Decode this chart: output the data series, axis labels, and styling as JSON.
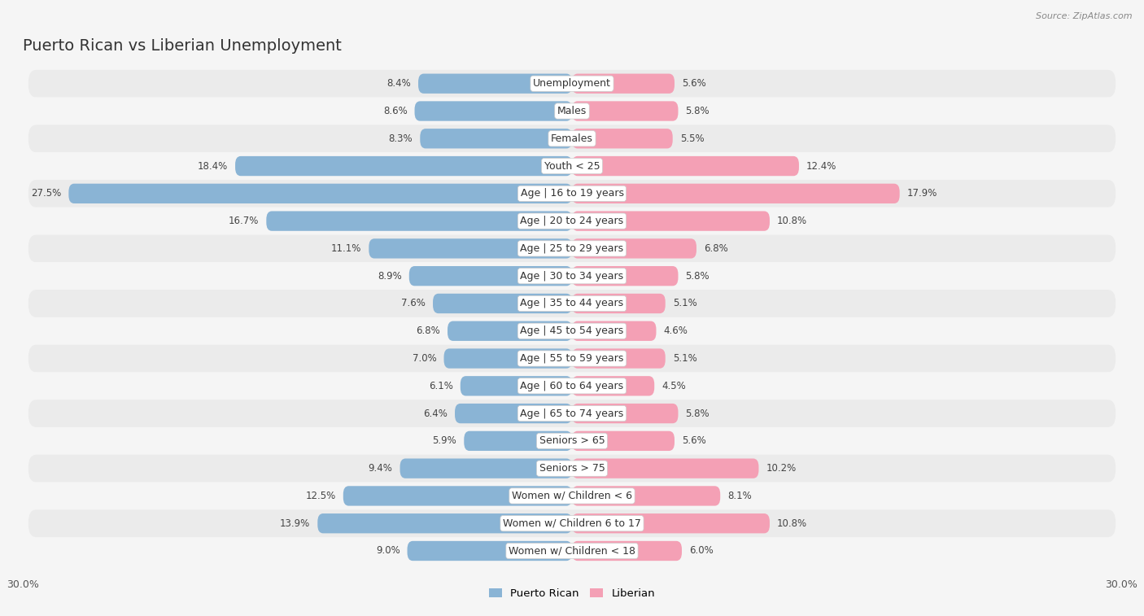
{
  "title": "Puerto Rican vs Liberian Unemployment",
  "source": "Source: ZipAtlas.com",
  "categories": [
    "Unemployment",
    "Males",
    "Females",
    "Youth < 25",
    "Age | 16 to 19 years",
    "Age | 20 to 24 years",
    "Age | 25 to 29 years",
    "Age | 30 to 34 years",
    "Age | 35 to 44 years",
    "Age | 45 to 54 years",
    "Age | 55 to 59 years",
    "Age | 60 to 64 years",
    "Age | 65 to 74 years",
    "Seniors > 65",
    "Seniors > 75",
    "Women w/ Children < 6",
    "Women w/ Children 6 to 17",
    "Women w/ Children < 18"
  ],
  "puerto_rican": [
    8.4,
    8.6,
    8.3,
    18.4,
    27.5,
    16.7,
    11.1,
    8.9,
    7.6,
    6.8,
    7.0,
    6.1,
    6.4,
    5.9,
    9.4,
    12.5,
    13.9,
    9.0
  ],
  "liberian": [
    5.6,
    5.8,
    5.5,
    12.4,
    17.9,
    10.8,
    6.8,
    5.8,
    5.1,
    4.6,
    5.1,
    4.5,
    5.8,
    5.6,
    10.2,
    8.1,
    10.8,
    6.0
  ],
  "puerto_rican_color": "#8ab4d5",
  "liberian_color": "#f4a0b5",
  "xlim": 30.0,
  "background_color": "#f5f5f5",
  "row_bg_light": "#e8e8e8",
  "row_bg_dark": "#d8d8d8",
  "title_fontsize": 14,
  "label_fontsize": 9,
  "value_fontsize": 8.5,
  "bar_height": 0.72
}
